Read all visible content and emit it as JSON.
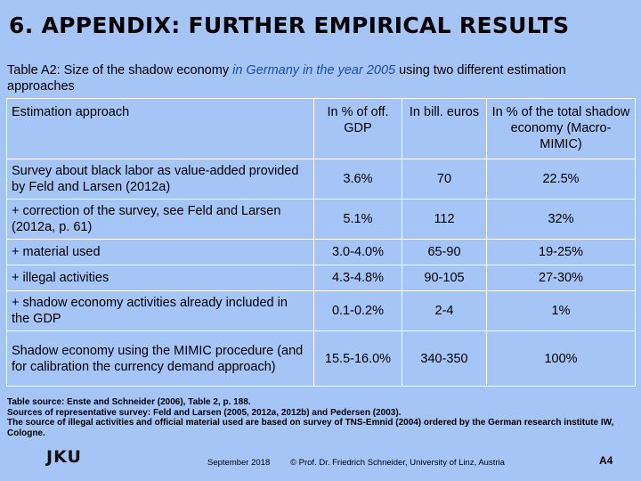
{
  "title": "6. APPENDIX: FURTHER EMPIRICAL RESULTS",
  "subtitle": {
    "prefix": "Table A2: Size of the shadow economy ",
    "highlight": "in Germany in the year 2005",
    "suffix": " using two different estimation approaches"
  },
  "table": {
    "headers": [
      "Estimation approach",
      "In % of off. GDP",
      "In bill. euros",
      "In % of the total shadow economy (Macro-MIMIC)"
    ],
    "rows": [
      [
        "Survey about black labor as value-added provided by Feld and Larsen (2012a)",
        "3.6%",
        "70",
        "22.5%"
      ],
      [
        "+ correction of the survey, see Feld and Larsen (2012a, p. 61)",
        "5.1%",
        "112",
        "32%"
      ],
      [
        "+ material used",
        "3.0-4.0%",
        "65-90",
        "19-25%"
      ],
      [
        "+ illegal activities",
        "4.3-4.8%",
        "90-105",
        "27-30%"
      ],
      [
        "+ shadow economy activities already included in the GDP",
        "0.1-0.2%",
        "2-4",
        "1%"
      ],
      [
        "Shadow economy using the MIMIC procedure (and for calibration the currency demand approach)",
        "15.5-16.0%",
        "340-350",
        "100%"
      ]
    ]
  },
  "sources": [
    "Table source: Enste and Schneider (2006), Table 2, p. 188.",
    "Sources of representative survey: Feld and Larsen (2005, 2012a, 2012b) and Pedersen (2003).",
    "The source of illegal activities and official material used are based on survey of TNS-Emnid (2004) ordered by the German research institute IW, Cologne."
  ],
  "footer": {
    "logo": "JKU",
    "date": "September 2018",
    "copyright": "© Prof. Dr. Friedrich Schneider, University of Linz, Austria",
    "page": "A4"
  }
}
